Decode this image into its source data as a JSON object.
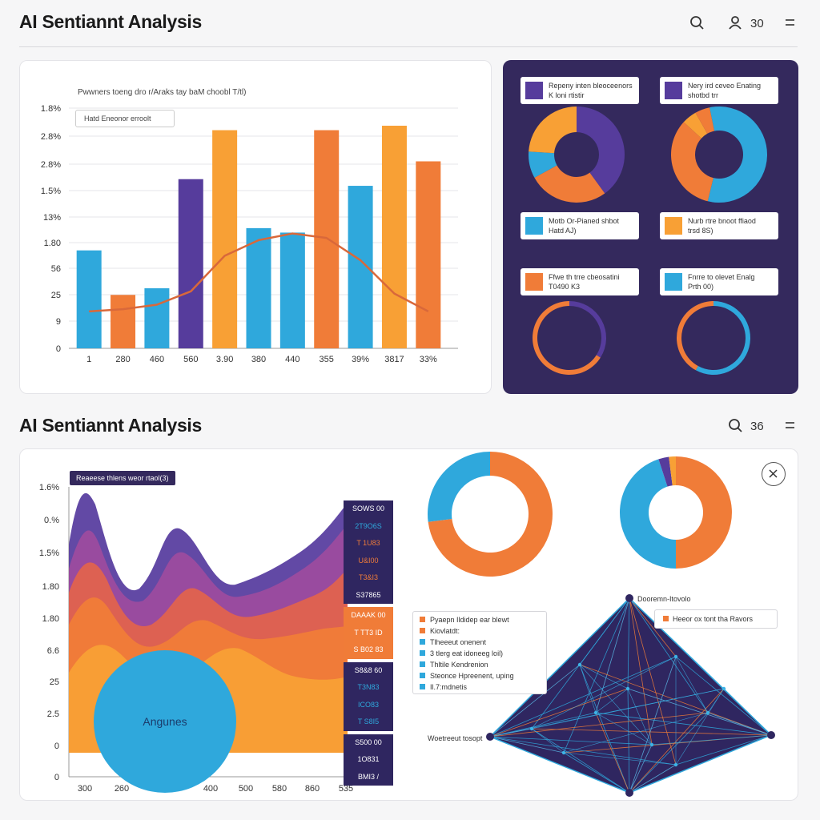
{
  "header": {
    "title": "AI Sentiannt Analysis",
    "count": "30"
  },
  "header2": {
    "title": "AI Sentiannt Analysis",
    "count": "36"
  },
  "icons": [
    "search-icon",
    "user-icon",
    "menu-icon",
    "close-icon"
  ],
  "colors": {
    "blue": "#2fa8dc",
    "orange": "#f07c38",
    "amber": "#f8a035",
    "purple": "#563c9c",
    "navy": "#2f2660"
  },
  "chart_data": [
    {
      "type": "bar",
      "title": "Pwwners toeng dro r/Araks tay baM choobl T/tl)",
      "legend": "Hatd Eneonor erroolt",
      "yticks": [
        "1.8%",
        "2.8%",
        "2.8%",
        "1.5%",
        "13%",
        "1.80",
        "56",
        "25",
        "9",
        "0"
      ],
      "categories": [
        "1",
        "280",
        "460",
        "560",
        "3.90",
        "380",
        "440",
        "355",
        "39%",
        "3817",
        "33%"
      ],
      "values": [
        0.44,
        0.24,
        0.27,
        0.76,
        0.98,
        0.54,
        0.52,
        0.98,
        0.73,
        1.0,
        0.84
      ],
      "bar_colors": [
        "blue",
        "orange",
        "blue",
        "purple",
        "amber",
        "blue",
        "blue",
        "orange",
        "blue",
        "amber",
        "orange"
      ],
      "trend_line": [
        0.13,
        0.14,
        0.16,
        0.22,
        0.38,
        0.45,
        0.48,
        0.46,
        0.36,
        0.21,
        0.13
      ]
    },
    {
      "type": "pie",
      "legends": [
        {
          "text": "Repeny inten bleoceenors\nK loni rtistir",
          "color": "purple"
        },
        {
          "text": "Nery ird ceveo Enating\nshotbd trr",
          "color": "purple"
        },
        {
          "text": "Motb Or-Pianed shbot\nHatd AJ)",
          "color": "blue"
        },
        {
          "text": "Nurb rtre bnoot ffiaod\ntrsd 8S)",
          "color": "amber"
        },
        {
          "text": "Ffwe th trre cbeosatini\nT0490 K3",
          "color": "orange"
        },
        {
          "text": "Fnrre to olevet Enalg\nPrth 00)",
          "color": "blue"
        }
      ],
      "donuts": [
        {
          "slices": [
            {
              "color": "purple",
              "value": 40
            },
            {
              "color": "orange",
              "value": 27
            },
            {
              "color": "blue",
              "value": 9
            },
            {
              "color": "amber",
              "value": 24
            }
          ]
        },
        {
          "slices": [
            {
              "color": "blue",
              "value": 57
            },
            {
              "color": "orange",
              "value": 33
            },
            {
              "color": "amber",
              "value": 5
            },
            {
              "color": "orange",
              "value": 5
            }
          ]
        },
        {
          "slices": [
            {
              "color": "purple",
              "value": 34
            },
            {
              "color": "orange",
              "value": 66
            }
          ]
        },
        {
          "slices": [
            {
              "color": "blue",
              "value": 58
            },
            {
              "color": "orange",
              "value": 42
            }
          ]
        }
      ]
    },
    {
      "type": "area",
      "legend": "Reaeese thlens weor rtaol(3)",
      "yticks": [
        "1.6%",
        "0.%",
        "1.5%",
        "1.80",
        "1.80",
        "6.6",
        "25",
        "2.5",
        "0",
        "0"
      ],
      "xticks": [
        "300",
        "260",
        "",
        "400",
        "500",
        "580",
        "860",
        "535"
      ],
      "bubble_label": "Angunes",
      "side_table": [
        {
          "text": "SOWS 00",
          "color": "#ffffff",
          "bg": "navy"
        },
        {
          "text": "2T9O6S",
          "color": "#2fa8dc",
          "bg": "navy"
        },
        {
          "text": "T 1U83",
          "color": "#f07c38",
          "bg": "navy"
        },
        {
          "text": "U&I00",
          "color": "#f07c38",
          "bg": "navy"
        },
        {
          "text": "T3&I3",
          "color": "#f07c38",
          "bg": "navy"
        },
        {
          "text": "S37865",
          "color": "#ffffff",
          "bg": "navy"
        },
        {
          "text": "DAAAK 00",
          "color": "#ffffff",
          "bg": "orange"
        },
        {
          "text": "T TT3 ID",
          "color": "#ffffff",
          "bg": "orange"
        },
        {
          "text": "S B02 83",
          "color": "#ffffff",
          "bg": "orange"
        },
        {
          "text": "S8&8 60",
          "color": "#ffffff",
          "bg": "navy"
        },
        {
          "text": "T3N83",
          "color": "#2fa8dc",
          "bg": "navy"
        },
        {
          "text": "ICO83",
          "color": "#2fa8dc",
          "bg": "navy"
        },
        {
          "text": "T S8I5",
          "color": "#2fa8dc",
          "bg": "navy"
        },
        {
          "text": "S500 00",
          "color": "#ffffff",
          "bg": "navy"
        },
        {
          "text": "1O831",
          "color": "#ffffff",
          "bg": "navy"
        },
        {
          "text": "BMI3 /",
          "color": "#ffffff",
          "bg": "navy"
        }
      ]
    },
    {
      "type": "pie",
      "donuts": [
        {
          "slices": [
            {
              "color": "orange",
              "value": 73
            },
            {
              "color": "blue",
              "value": 27
            }
          ]
        },
        {
          "slices": [
            {
              "color": "orange",
              "value": 50
            },
            {
              "color": "blue",
              "value": 45
            },
            {
              "color": "purple",
              "value": 3
            },
            {
              "color": "amber",
              "value": 2
            }
          ]
        }
      ]
    },
    {
      "type": "radar",
      "top_label": "Dooremn-Itovolo",
      "left_label": "Woetreeut tosopt",
      "legend_right": "Heeor ox tont tha Ravors",
      "legend_items": [
        {
          "text": "Pyaepn Ildidep ear blewt",
          "color": "orange"
        },
        {
          "text": "Kiovlatdt:",
          "color": "orange"
        },
        {
          "text": "Tlheeeut onenent",
          "color": "blue"
        },
        {
          "text": "3 tlerg eat idoneeg loil)",
          "color": "blue"
        },
        {
          "text": "Thltile Kendrenion",
          "color": "blue"
        },
        {
          "text": "Steonce Hpreenent, uping",
          "color": "blue"
        },
        {
          "text": "Il.7:mdnetis",
          "color": "blue"
        }
      ]
    }
  ]
}
